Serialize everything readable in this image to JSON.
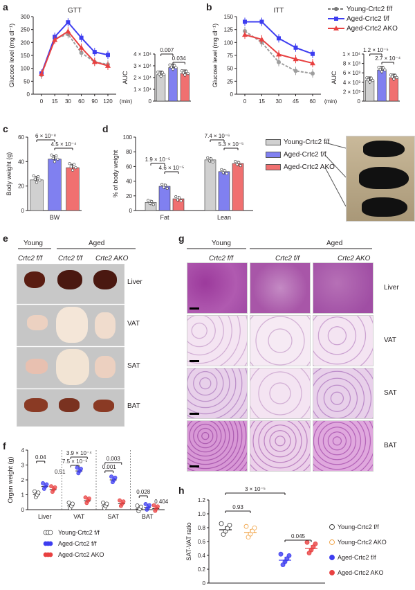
{
  "panel_labels": {
    "a": "a",
    "b": "b",
    "c": "c",
    "d": "d",
    "e": "e",
    "f": "f",
    "g": "g",
    "h": "h"
  },
  "legend_top": [
    "Young-Crtc2 f/f",
    "Aged-Crtc2 f/f",
    "Aged-Crtc2 AKO"
  ],
  "legend_d": [
    "Young-Crtc2 f/f",
    "Aged-Crtc2 f/f",
    "Aged-Crtc2 AKO"
  ],
  "colors": {
    "young": "#9e9e9e",
    "aged": "#3d3df0",
    "ako": "#e84040",
    "young_ako": "#f0a040",
    "bar_young": "#d0d0d0",
    "bar_aged": "#8080f0",
    "bar_ako": "#f07070"
  },
  "panel_e": {
    "headers": [
      "Young",
      "Aged"
    ],
    "genotypes": [
      "Crtc2 f/f",
      "Crtc2 f/f",
      "Crtc2 AKO"
    ],
    "tissues": [
      "Liver",
      "VAT",
      "SAT",
      "BAT"
    ]
  },
  "panel_g": {
    "headers": [
      "Young",
      "Aged"
    ],
    "genotypes": [
      "Crtc2 f/f",
      "Crtc2 f/f",
      "Crtc2 AKO"
    ],
    "tissues": [
      "Liver",
      "VAT",
      "SAT",
      "BAT"
    ]
  },
  "chart_data": [
    {
      "id": "a",
      "type": "line",
      "title": "GTT",
      "xlabel": "(min)",
      "ylabel": "Glucose level (mg dl⁻¹)",
      "x": [
        0,
        15,
        30,
        60,
        90,
        120
      ],
      "ylim": [
        0,
        300
      ],
      "yticks": [
        0,
        50,
        100,
        150,
        200,
        250,
        300
      ],
      "series": [
        {
          "name": "Young-Crtc2 f/f",
          "values": [
            75,
            215,
            232,
            160,
            125,
            115
          ]
        },
        {
          "name": "Aged-Crtc2 f/f",
          "values": [
            80,
            222,
            278,
            218,
            163,
            152
          ]
        },
        {
          "name": "Aged-Crtc2 AKO",
          "values": [
            78,
            210,
            243,
            180,
            125,
            110
          ]
        }
      ]
    },
    {
      "id": "a_auc",
      "type": "bar",
      "ylabel": "AUC",
      "ytick_labels": [
        "0",
        "1 × 10⁴",
        "2 × 10⁴",
        "3 × 10⁴",
        "4 × 10⁴"
      ],
      "ylim": [
        0,
        40000
      ],
      "categories": [
        "Young-Crtc2 f/f",
        "Aged-Crtc2 f/f",
        "Aged-Crtc2 AKO"
      ],
      "values": [
        22500,
        28500,
        23500
      ],
      "annotations": [
        "0.007",
        "0.034"
      ]
    },
    {
      "id": "b",
      "type": "line",
      "title": "ITT",
      "xlabel": "(min)",
      "ylabel": "Glucose level (mg dl⁻¹)",
      "x": [
        0,
        15,
        30,
        45,
        60
      ],
      "ylim": [
        0,
        150
      ],
      "yticks": [
        0,
        25,
        50,
        75,
        100,
        125,
        150
      ],
      "series": [
        {
          "name": "Young-Crtc2 f/f",
          "values": [
            122,
            100,
            62,
            45,
            40
          ]
        },
        {
          "name": "Aged-Crtc2 f/f",
          "values": [
            140,
            140,
            108,
            90,
            78
          ]
        },
        {
          "name": "Aged-Crtc2 AKO",
          "values": [
            115,
            106,
            77,
            68,
            60
          ]
        }
      ]
    },
    {
      "id": "b_auc",
      "type": "bar",
      "ylabel": "AUC",
      "ytick_labels": [
        "0",
        "2 × 10³",
        "4 × 10³",
        "6 × 10³",
        "8 × 10³",
        "1 × 10⁴"
      ],
      "ylim": [
        0,
        10000
      ],
      "categories": [
        "Young-Crtc2 f/f",
        "Aged-Crtc2 f/f",
        "Aged-Crtc2 AKO"
      ],
      "values": [
        4400,
        6600,
        5000
      ],
      "annotations": [
        "1.2 × 10⁻⁵",
        "2.7 × 10⁻⁴"
      ]
    },
    {
      "id": "c",
      "type": "bar",
      "ylabel": "Body weight (g)",
      "ylim": [
        0,
        60
      ],
      "yticks": [
        0,
        20,
        40,
        60
      ],
      "xlabel": "BW",
      "categories": [
        "Young-Crtc2 f/f",
        "Aged-Crtc2 f/f",
        "Aged-Crtc2 AKO"
      ],
      "values": [
        25,
        42,
        35
      ],
      "annotations": [
        "6 × 10⁻⁸",
        "4.5 × 10⁻⁴"
      ]
    },
    {
      "id": "d",
      "type": "bar",
      "ylabel": "% of body weight",
      "ylim": [
        0,
        100
      ],
      "yticks": [
        0,
        20,
        40,
        60,
        80,
        100
      ],
      "categories": [
        "Fat",
        "Lean"
      ],
      "series": [
        {
          "name": "Young-Crtc2 f/f",
          "values": [
            11,
            69
          ]
        },
        {
          "name": "Aged-Crtc2 f/f",
          "values": [
            33,
            53
          ]
        },
        {
          "name": "Aged-Crtc2 AKO",
          "values": [
            16,
            64
          ]
        }
      ],
      "annotations": [
        "1.9 × 10⁻⁵",
        "4.6 × 10⁻⁵",
        "7.4 × 10⁻⁶",
        "5.3 × 10⁻⁵"
      ]
    },
    {
      "id": "f",
      "type": "scatter",
      "ylabel": "Organ weight (g)",
      "ylim": [
        0,
        4
      ],
      "yticks": [
        0,
        1,
        2,
        3,
        4
      ],
      "categories": [
        "Liver",
        "VAT",
        "SAT",
        "BAT"
      ],
      "series": [
        {
          "name": "Young-Crtc2 f/f",
          "values": [
            1.0,
            0.25,
            0.25,
            0.05
          ]
        },
        {
          "name": "Aged-Crtc2 f/f",
          "values": [
            1.55,
            2.6,
            2.0,
            0.15
          ]
        },
        {
          "name": "Aged-Crtc2 AKO",
          "values": [
            1.35,
            0.6,
            0.4,
            0.07
          ]
        }
      ],
      "annotations": [
        "0.04",
        "0.51",
        "7.5 × 10⁻⁵",
        "3.9 × 10⁻⁴",
        "0.001",
        "0.003",
        "0.028",
        "0.404"
      ]
    },
    {
      "id": "h",
      "type": "scatter",
      "ylabel": "SAT-VAT ratio",
      "ylim": [
        0,
        1.2
      ],
      "yticks": [
        0,
        0.2,
        0.4,
        0.6,
        0.8,
        1.0,
        1.2
      ],
      "ytick_labels": [
        "0",
        "0.2",
        "0.4",
        "0.6",
        "0.8",
        "1.0",
        "1.2"
      ],
      "series": [
        {
          "name": "Young-Crtc2 f/f",
          "values": [
            0.77
          ]
        },
        {
          "name": "Young-Crtc2 AKO",
          "values": [
            0.73
          ]
        },
        {
          "name": "Aged-Crtc2 f/f",
          "values": [
            0.33
          ]
        },
        {
          "name": "Aged-Crtc2 AKO",
          "values": [
            0.5
          ]
        }
      ],
      "annotations": [
        "3 × 10⁻⁵",
        "0.93",
        "0.045"
      ]
    }
  ]
}
